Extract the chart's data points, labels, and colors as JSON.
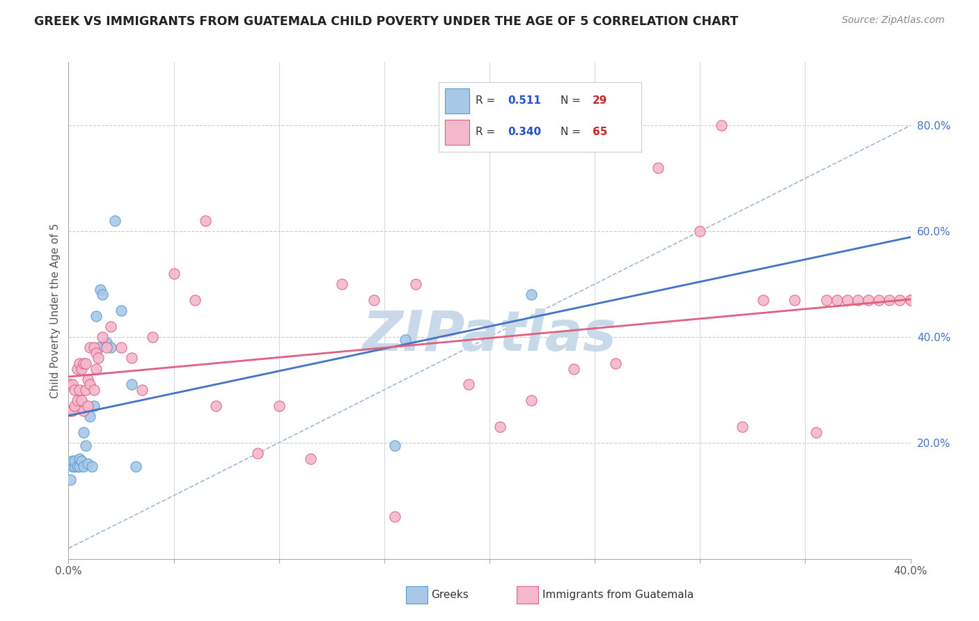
{
  "title": "GREEK VS IMMIGRANTS FROM GUATEMALA CHILD POVERTY UNDER THE AGE OF 5 CORRELATION CHART",
  "source": "Source: ZipAtlas.com",
  "ylabel": "Child Poverty Under the Age of 5",
  "xlim": [
    0.0,
    0.4
  ],
  "ylim": [
    -0.02,
    0.92
  ],
  "x_ticks": [
    0.0,
    0.05,
    0.1,
    0.15,
    0.2,
    0.25,
    0.3,
    0.35,
    0.4
  ],
  "x_tick_labels": [
    "0.0%",
    "",
    "",
    "",
    "",
    "",
    "",
    "",
    "40.0%"
  ],
  "y_ticks_right": [
    0.2,
    0.4,
    0.6,
    0.8
  ],
  "y_tick_labels_right": [
    "20.0%",
    "40.0%",
    "60.0%",
    "80.0%"
  ],
  "greek_fill_color": "#a8c8e8",
  "greek_edge_color": "#5b9bd5",
  "guatemala_fill_color": "#f4b8cc",
  "guatemala_edge_color": "#e06080",
  "greek_line_color": "#4472c4",
  "guatemala_line_color": "#e06080",
  "dashed_line_color": "#a0b8d8",
  "watermark_color": "#c8daea",
  "legend_box_bg": "#ffffff",
  "legend_border_color": "#cccccc",
  "right_axis_color": "#4472c4",
  "greek_R": "0.511",
  "greek_N": "29",
  "guatemala_R": "0.340",
  "guatemala_N": "65",
  "greek_scatter_x": [
    0.001,
    0.002,
    0.002,
    0.003,
    0.003,
    0.004,
    0.005,
    0.005,
    0.006,
    0.007,
    0.007,
    0.008,
    0.009,
    0.01,
    0.011,
    0.012,
    0.013,
    0.014,
    0.015,
    0.016,
    0.018,
    0.02,
    0.022,
    0.025,
    0.03,
    0.032,
    0.155,
    0.16,
    0.22
  ],
  "greek_scatter_y": [
    0.13,
    0.155,
    0.165,
    0.155,
    0.165,
    0.155,
    0.155,
    0.17,
    0.165,
    0.155,
    0.22,
    0.195,
    0.16,
    0.25,
    0.155,
    0.27,
    0.44,
    0.38,
    0.49,
    0.48,
    0.39,
    0.38,
    0.62,
    0.45,
    0.31,
    0.155,
    0.195,
    0.395,
    0.48
  ],
  "guatemala_scatter_x": [
    0.001,
    0.001,
    0.002,
    0.002,
    0.003,
    0.003,
    0.004,
    0.004,
    0.005,
    0.005,
    0.006,
    0.006,
    0.007,
    0.007,
    0.008,
    0.008,
    0.009,
    0.009,
    0.01,
    0.01,
    0.012,
    0.012,
    0.013,
    0.013,
    0.014,
    0.016,
    0.018,
    0.02,
    0.025,
    0.03,
    0.035,
    0.04,
    0.05,
    0.06,
    0.065,
    0.07,
    0.09,
    0.1,
    0.115,
    0.13,
    0.145,
    0.155,
    0.165,
    0.19,
    0.205,
    0.22,
    0.24,
    0.26,
    0.28,
    0.3,
    0.31,
    0.32,
    0.33,
    0.345,
    0.355,
    0.36,
    0.365,
    0.37,
    0.375,
    0.38,
    0.385,
    0.39,
    0.395,
    0.4,
    0.4
  ],
  "guatemala_scatter_y": [
    0.26,
    0.31,
    0.26,
    0.31,
    0.27,
    0.3,
    0.28,
    0.34,
    0.3,
    0.35,
    0.28,
    0.34,
    0.26,
    0.35,
    0.3,
    0.35,
    0.27,
    0.32,
    0.31,
    0.38,
    0.3,
    0.38,
    0.34,
    0.37,
    0.36,
    0.4,
    0.38,
    0.42,
    0.38,
    0.36,
    0.3,
    0.4,
    0.52,
    0.47,
    0.62,
    0.27,
    0.18,
    0.27,
    0.17,
    0.5,
    0.47,
    0.06,
    0.5,
    0.31,
    0.23,
    0.28,
    0.34,
    0.35,
    0.72,
    0.6,
    0.8,
    0.23,
    0.47,
    0.47,
    0.22,
    0.47,
    0.47,
    0.47,
    0.47,
    0.47,
    0.47,
    0.47,
    0.47,
    0.47,
    0.47
  ]
}
